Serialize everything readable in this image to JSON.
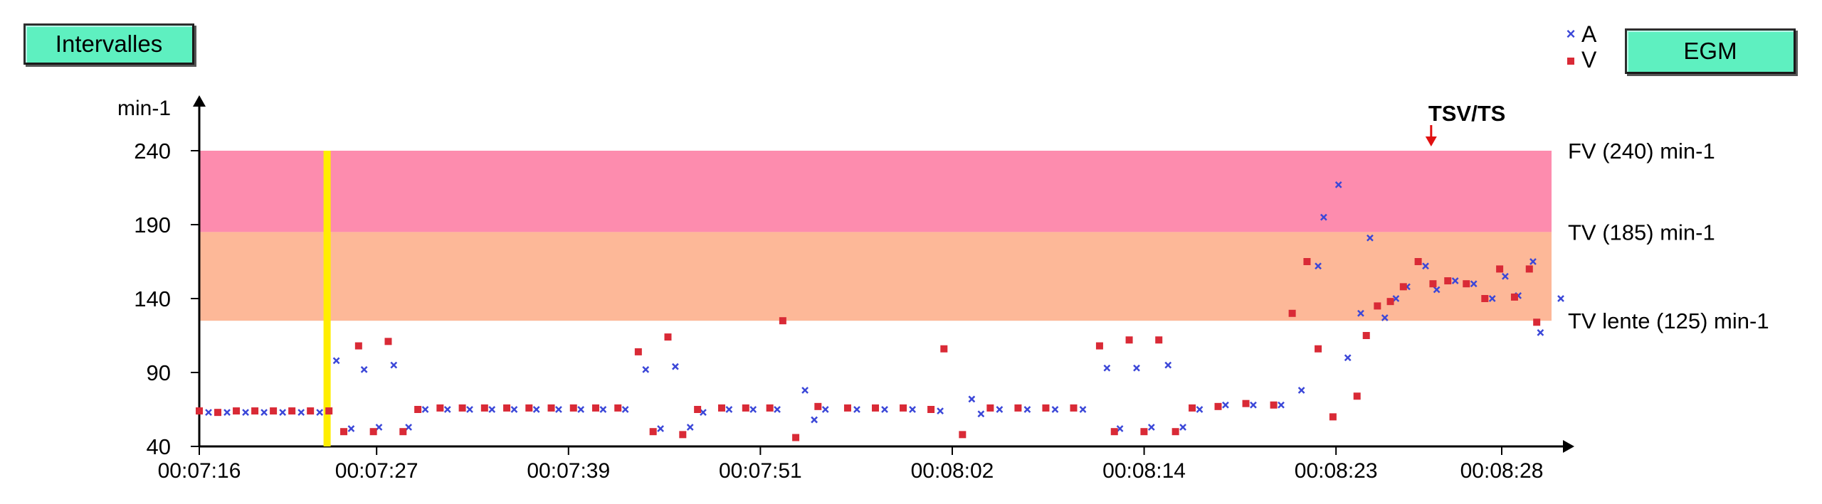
{
  "buttons": {
    "intervalles": "Intervalles",
    "egm": "EGM"
  },
  "legend": [
    {
      "label": "A",
      "marker": "cross",
      "color": "#3b47d8"
    },
    {
      "label": "V",
      "marker": "square",
      "color": "#d92a36"
    }
  ],
  "chart_data": {
    "type": "scatter",
    "ylabel": "min-1",
    "ylim": [
      40,
      240
    ],
    "yticks": [
      40,
      90,
      140,
      190,
      240
    ],
    "xticks": [
      "00:07:16",
      "00:07:27",
      "00:07:39",
      "00:07:51",
      "00:08:02",
      "00:08:14",
      "00:08:23",
      "00:08:28"
    ],
    "xlim": [
      0,
      7.3
    ],
    "zones": [
      {
        "label": "FV (240) min-1",
        "from": 185,
        "to": 240,
        "color": "#fd8cae"
      },
      {
        "label": "TV (185) min-1",
        "from": 125,
        "to": 185,
        "color": "#fdb898"
      },
      {
        "label": "TV lente (125) min-1",
        "from": 125,
        "to": 125,
        "color": "#fdb898"
      }
    ],
    "marker_line": {
      "x": 0.69,
      "color": "#ffee00"
    },
    "event": {
      "label": "TSV/TS",
      "x": 6.65,
      "color": "#e01010"
    },
    "series": [
      {
        "name": "A",
        "color": "#3b47d8",
        "marker": "cross",
        "points": [
          [
            0.05,
            63
          ],
          [
            0.15,
            63
          ],
          [
            0.25,
            63
          ],
          [
            0.35,
            63
          ],
          [
            0.45,
            63
          ],
          [
            0.55,
            63
          ],
          [
            0.65,
            63
          ],
          [
            0.74,
            98
          ],
          [
            0.82,
            52
          ],
          [
            0.89,
            92
          ],
          [
            0.97,
            53
          ],
          [
            1.05,
            95
          ],
          [
            1.13,
            53
          ],
          [
            1.22,
            65
          ],
          [
            1.34,
            65
          ],
          [
            1.46,
            65
          ],
          [
            1.58,
            65
          ],
          [
            1.7,
            65
          ],
          [
            1.82,
            65
          ],
          [
            1.94,
            65
          ],
          [
            2.06,
            65
          ],
          [
            2.18,
            65
          ],
          [
            2.3,
            65
          ],
          [
            2.41,
            92
          ],
          [
            2.49,
            52
          ],
          [
            2.57,
            94
          ],
          [
            2.65,
            53
          ],
          [
            2.72,
            63
          ],
          [
            2.86,
            65
          ],
          [
            2.99,
            65
          ],
          [
            3.12,
            65
          ],
          [
            3.27,
            78
          ],
          [
            3.32,
            58
          ],
          [
            3.38,
            65
          ],
          [
            3.55,
            65
          ],
          [
            3.7,
            65
          ],
          [
            3.85,
            65
          ],
          [
            4.0,
            64
          ],
          [
            4.17,
            72
          ],
          [
            4.22,
            62
          ],
          [
            4.32,
            65
          ],
          [
            4.47,
            65
          ],
          [
            4.62,
            65
          ],
          [
            4.77,
            65
          ],
          [
            4.9,
            93
          ],
          [
            4.97,
            52
          ],
          [
            5.06,
            93
          ],
          [
            5.14,
            53
          ],
          [
            5.23,
            95
          ],
          [
            5.31,
            53
          ],
          [
            5.4,
            65
          ],
          [
            5.54,
            68
          ],
          [
            5.69,
            68
          ],
          [
            5.84,
            68
          ],
          [
            5.95,
            78
          ],
          [
            6.04,
            162
          ],
          [
            6.07,
            195
          ],
          [
            6.15,
            217
          ],
          [
            6.2,
            100
          ],
          [
            6.27,
            130
          ],
          [
            6.32,
            181
          ],
          [
            6.4,
            127
          ],
          [
            6.46,
            140
          ],
          [
            6.52,
            148
          ],
          [
            6.62,
            162
          ],
          [
            6.68,
            146
          ],
          [
            6.78,
            152
          ],
          [
            6.88,
            150
          ],
          [
            6.98,
            140
          ],
          [
            7.05,
            155
          ],
          [
            7.12,
            142
          ],
          [
            7.2,
            165
          ],
          [
            7.24,
            117
          ],
          [
            7.35,
            140
          ]
        ]
      },
      {
        "name": "V",
        "color": "#d92a36",
        "marker": "square",
        "points": [
          [
            0.0,
            64
          ],
          [
            0.1,
            63
          ],
          [
            0.2,
            64
          ],
          [
            0.3,
            64
          ],
          [
            0.4,
            64
          ],
          [
            0.5,
            64
          ],
          [
            0.6,
            64
          ],
          [
            0.7,
            64
          ],
          [
            0.78,
            50
          ],
          [
            0.86,
            108
          ],
          [
            0.94,
            50
          ],
          [
            1.02,
            111
          ],
          [
            1.1,
            50
          ],
          [
            1.18,
            65
          ],
          [
            1.3,
            66
          ],
          [
            1.42,
            66
          ],
          [
            1.54,
            66
          ],
          [
            1.66,
            66
          ],
          [
            1.78,
            66
          ],
          [
            1.9,
            66
          ],
          [
            2.02,
            66
          ],
          [
            2.14,
            66
          ],
          [
            2.26,
            66
          ],
          [
            2.37,
            104
          ],
          [
            2.45,
            50
          ],
          [
            2.53,
            114
          ],
          [
            2.61,
            48
          ],
          [
            2.69,
            65
          ],
          [
            2.82,
            66
          ],
          [
            2.95,
            66
          ],
          [
            3.08,
            66
          ],
          [
            3.15,
            125
          ],
          [
            3.22,
            46
          ],
          [
            3.34,
            67
          ],
          [
            3.5,
            66
          ],
          [
            3.65,
            66
          ],
          [
            3.8,
            66
          ],
          [
            3.95,
            65
          ],
          [
            4.02,
            106
          ],
          [
            4.12,
            48
          ],
          [
            4.27,
            66
          ],
          [
            4.42,
            66
          ],
          [
            4.57,
            66
          ],
          [
            4.72,
            66
          ],
          [
            4.86,
            108
          ],
          [
            4.94,
            50
          ],
          [
            5.02,
            112
          ],
          [
            5.1,
            50
          ],
          [
            5.18,
            112
          ],
          [
            5.27,
            50
          ],
          [
            5.36,
            66
          ],
          [
            5.5,
            67
          ],
          [
            5.65,
            69
          ],
          [
            5.8,
            68
          ],
          [
            5.9,
            130
          ],
          [
            5.98,
            165
          ],
          [
            6.04,
            106
          ],
          [
            6.12,
            60
          ],
          [
            6.25,
            74
          ],
          [
            6.3,
            115
          ],
          [
            6.36,
            135
          ],
          [
            6.43,
            138
          ],
          [
            6.5,
            148
          ],
          [
            6.58,
            165
          ],
          [
            6.66,
            150
          ],
          [
            6.74,
            152
          ],
          [
            6.84,
            150
          ],
          [
            6.94,
            140
          ],
          [
            7.02,
            160
          ],
          [
            7.1,
            141
          ],
          [
            7.18,
            160
          ],
          [
            7.22,
            124
          ]
        ]
      }
    ]
  }
}
